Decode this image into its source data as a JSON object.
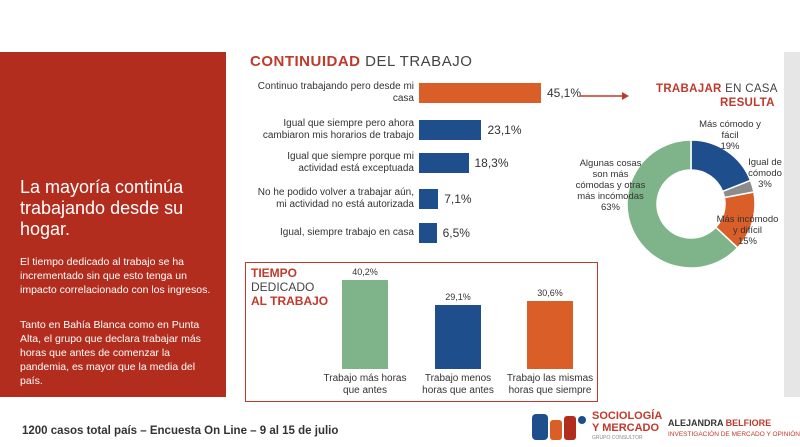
{
  "left": {
    "headline": "La mayoría continúa trabajando desde su hogar.",
    "para1": "El tiempo dedicado al trabajo se ha incrementado  sin que esto tenga un impacto correlacionado con los ingresos.",
    "para2": "Tanto en Bahía Blanca como en Punta Alta, el grupo que declara trabajar más horas que antes de comenzar la pandemia, es mayor que la media del país."
  },
  "titles": {
    "continuidad_bold": "CONTINUIDAD",
    "continuidad_rest": " DEL TRABAJO",
    "casa_bold": "TRABAJAR",
    "casa_rest": " EN CASA",
    "casa_sub": "RESULTA",
    "tiempo_bold": "TIEMPO",
    "tiempo_mid": "DEDICADO",
    "tiempo_last": "AL TRABAJO"
  },
  "colors": {
    "orange": "#d95e28",
    "blue": "#1f4e8c",
    "green": "#7fb48a",
    "gray": "#8c8c8c",
    "red": "#b32d1f"
  },
  "chart_data": [
    {
      "type": "bar",
      "orientation": "horizontal",
      "categories": [
        "Continuo trabajando pero desde mi casa",
        "Igual que siempre pero ahora cambiaron mis horarios de trabajo",
        "Igual que siempre porque mi actividad está exceptuada",
        "No he podido volver a trabajar aún, mi actividad no está autorizada",
        "Igual, siempre trabajo en casa"
      ],
      "label_lines": [
        [
          "Continuo trabajando pero desde mi",
          "casa"
        ],
        [
          "Igual que siempre pero ahora",
          "cambiaron mis horarios de trabajo"
        ],
        [
          "Igual que siempre porque mi",
          "actividad está exceptuada"
        ],
        [
          "No he podido volver a trabajar aún,",
          "mi actividad no está autorizada"
        ],
        [
          "Igual, siempre trabajo en casa"
        ]
      ],
      "values": [
        45.1,
        23.1,
        18.3,
        7.1,
        6.5
      ],
      "value_labels": [
        "45,1%",
        "23,1%",
        "18,3%",
        "7,1%",
        "6,5%"
      ],
      "bar_colors": [
        "#d95e28",
        "#1f4e8c",
        "#1f4e8c",
        "#1f4e8c",
        "#1f4e8c"
      ]
    },
    {
      "type": "pie",
      "donut": true,
      "categories": [
        "Más cómodo y fácil",
        "Igual de cómodo",
        "Más incómodo y difícil",
        "Algunas cosas son más cómodas y otras más incómodas"
      ],
      "values": [
        19,
        3,
        15,
        63
      ],
      "value_labels": [
        "19%",
        "3%",
        "15%",
        "63%"
      ],
      "label_lines": [
        [
          "Más cómodo y",
          "fácil",
          "19%"
        ],
        [
          "Igual de",
          "cómodo",
          "3%"
        ],
        [
          "Más incómodo",
          "y difícil",
          "15%"
        ],
        [
          "Algunas cosas",
          "son más",
          "cómodas y otras",
          "más incómodas",
          "63%"
        ]
      ],
      "slice_colors": [
        "#1f4e8c",
        "#8c8c8c",
        "#d95e28",
        "#7fb48a"
      ]
    },
    {
      "type": "bar",
      "orientation": "vertical",
      "categories": [
        "Trabajo más horas que antes",
        "Trabajo menos horas que antes",
        "Trabajo las mismas horas que siempre"
      ],
      "label_lines": [
        [
          "Trabajo más horas",
          "que antes"
        ],
        [
          "Trabajo menos",
          "horas que antes"
        ],
        [
          "Trabajo las mismas",
          "horas que siempre"
        ]
      ],
      "values": [
        40.2,
        29.1,
        30.6
      ],
      "value_labels": [
        "40,2%",
        "29,1%",
        "30,6%"
      ],
      "bar_colors": [
        "#7fb48a",
        "#1f4e8c",
        "#d95e28"
      ]
    }
  ],
  "footer": {
    "text": "1200 casos total país – Encuesta On Line – 9 al 15 de julio",
    "brand_line1": "SOCIOLOGÍA",
    "brand_line2": "Y MERCADO",
    "brand_small": "GRUPO CONSULTOR",
    "name_first": "ALEJANDRA ",
    "name_last": "BELFIORE",
    "tagline": "INVESTIGACIÓN DE MERCADO Y OPINIÓN"
  }
}
